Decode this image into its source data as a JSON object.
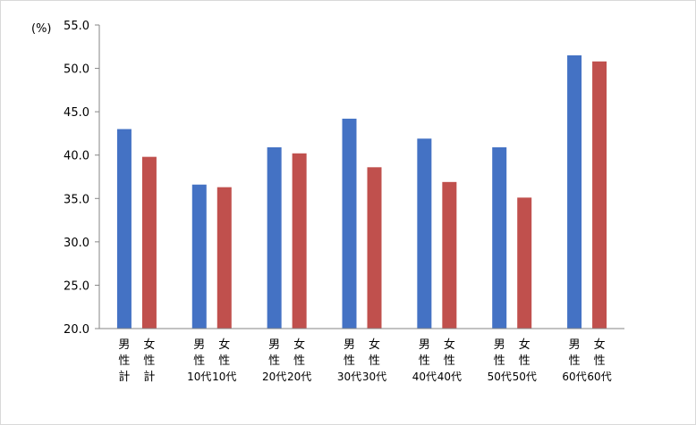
{
  "chart_data": {
    "type": "bar",
    "unit_label": "(%)",
    "ylim": [
      20.0,
      55.0
    ],
    "ytick_step": 5,
    "yticks": [
      "20.0",
      "25.0",
      "30.0",
      "35.0",
      "40.0",
      "45.0",
      "50.0",
      "55.0"
    ],
    "grid": false,
    "legend": "none",
    "categories": [
      "男性計",
      "女性計",
      "男性10代",
      "女性10代",
      "男性20代",
      "女性20代",
      "男性30代",
      "女性30代",
      "男性40代",
      "女性40代",
      "男性50代",
      "女性50代",
      "男性60代",
      "女性60代"
    ],
    "category_lines": [
      [
        "男",
        "性",
        "計"
      ],
      [
        "女",
        "性",
        "計"
      ],
      [
        "男",
        "性",
        "10代"
      ],
      [
        "女",
        "性",
        "10代"
      ],
      [
        "男",
        "性",
        "20代"
      ],
      [
        "女",
        "性",
        "20代"
      ],
      [
        "男",
        "性",
        "30代"
      ],
      [
        "女",
        "性",
        "30代"
      ],
      [
        "男",
        "性",
        "40代"
      ],
      [
        "女",
        "性",
        "40代"
      ],
      [
        "男",
        "性",
        "50代"
      ],
      [
        "女",
        "性",
        "50代"
      ],
      [
        "男",
        "性",
        "60代"
      ],
      [
        "女",
        "性",
        "60代"
      ]
    ],
    "values": [
      43.0,
      39.8,
      36.6,
      36.3,
      40.9,
      40.2,
      44.2,
      38.6,
      41.9,
      36.9,
      40.9,
      35.1,
      51.5,
      50.8
    ],
    "colors": {
      "male": "#4472c4",
      "female": "#c0504d"
    }
  }
}
